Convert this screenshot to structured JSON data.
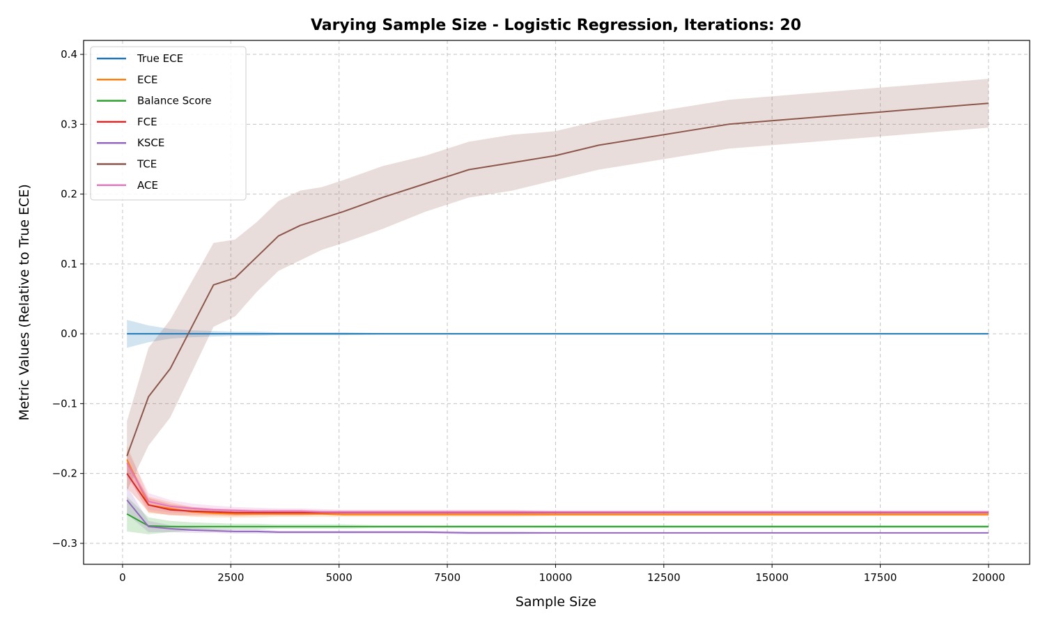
{
  "chart_data": {
    "type": "line",
    "title": "Varying Sample Size - Logistic Regression, Iterations: 20",
    "xlabel": "Sample Size",
    "ylabel": "Metric Values (Relative to True ECE)",
    "xlim": [
      -900,
      20950
    ],
    "ylim": [
      -0.33,
      0.42
    ],
    "xticks": [
      0,
      2500,
      5000,
      7500,
      10000,
      12500,
      15000,
      17500,
      20000
    ],
    "yticks": [
      -0.3,
      -0.2,
      -0.1,
      0.0,
      0.1,
      0.2,
      0.3,
      0.4
    ],
    "xtick_labels": [
      "0",
      "2500",
      "5000",
      "7500",
      "10000",
      "12500",
      "15000",
      "17500",
      "20000"
    ],
    "ytick_labels": [
      "−0.3",
      "−0.2",
      "−0.1",
      "0.0",
      "0.1",
      "0.2",
      "0.3",
      "0.4"
    ],
    "grid": true,
    "legend_position": "top-left",
    "x": [
      100,
      600,
      1100,
      1600,
      2100,
      2600,
      3100,
      3600,
      4100,
      4600,
      5100,
      6000,
      7000,
      8000,
      9000,
      10000,
      11000,
      12000,
      13000,
      14000,
      15000,
      16000,
      17000,
      18000,
      19000,
      20000
    ],
    "series": [
      {
        "name": "True ECE",
        "color": "#1f77b4",
        "values": [
          0.0,
          0.0,
          0.0,
          0.0,
          0.0,
          0.0,
          0.0,
          0.0,
          0.0,
          0.0,
          0.0,
          0.0,
          0.0,
          0.0,
          0.0,
          0.0,
          0.0,
          0.0,
          0.0,
          0.0,
          0.0,
          0.0,
          0.0,
          0.0,
          0.0,
          0.0
        ],
        "band": [
          0.02,
          0.012,
          0.007,
          0.005,
          0.004,
          0.003,
          0.003,
          0.002,
          0.002,
          0.002,
          0.002,
          0.001,
          0.001,
          0.001,
          0.001,
          0.001,
          0.001,
          0.001,
          0.001,
          0.001,
          0.001,
          0.001,
          0.001,
          0.001,
          0.001,
          0.001
        ]
      },
      {
        "name": "ECE",
        "color": "#ff7f0e",
        "values": [
          -0.18,
          -0.245,
          -0.25,
          -0.255,
          -0.257,
          -0.258,
          -0.258,
          -0.258,
          -0.258,
          -0.258,
          -0.259,
          -0.259,
          -0.259,
          -0.259,
          -0.259,
          -0.259,
          -0.259,
          -0.259,
          -0.259,
          -0.259,
          -0.259,
          -0.259,
          -0.259,
          -0.259,
          -0.259,
          -0.259
        ],
        "band": [
          0.02,
          0.012,
          0.009,
          0.007,
          0.006,
          0.005,
          0.005,
          0.004,
          0.004,
          0.004,
          0.003,
          0.003,
          0.003,
          0.003,
          0.003,
          0.002,
          0.002,
          0.002,
          0.002,
          0.002,
          0.002,
          0.002,
          0.002,
          0.002,
          0.002,
          0.002
        ]
      },
      {
        "name": "Balance Score",
        "color": "#2ca02c",
        "values": [
          -0.258,
          -0.275,
          -0.276,
          -0.276,
          -0.276,
          -0.276,
          -0.276,
          -0.276,
          -0.276,
          -0.276,
          -0.276,
          -0.276,
          -0.276,
          -0.276,
          -0.276,
          -0.276,
          -0.276,
          -0.276,
          -0.276,
          -0.276,
          -0.276,
          -0.276,
          -0.276,
          -0.276,
          -0.276,
          -0.276
        ],
        "band": [
          0.025,
          0.012,
          0.008,
          0.006,
          0.005,
          0.004,
          0.004,
          0.003,
          0.003,
          0.003,
          0.003,
          0.002,
          0.002,
          0.002,
          0.002,
          0.002,
          0.002,
          0.002,
          0.002,
          0.002,
          0.002,
          0.002,
          0.002,
          0.002,
          0.002,
          0.002
        ]
      },
      {
        "name": "FCE",
        "color": "#d62728",
        "values": [
          -0.2,
          -0.245,
          -0.252,
          -0.254,
          -0.255,
          -0.256,
          -0.256,
          -0.256,
          -0.256,
          -0.256,
          -0.256,
          -0.256,
          -0.256,
          -0.256,
          -0.256,
          -0.256,
          -0.256,
          -0.256,
          -0.256,
          -0.256,
          -0.256,
          -0.256,
          -0.256,
          -0.256,
          -0.256,
          -0.256
        ],
        "band": [
          0.02,
          0.01,
          0.008,
          0.006,
          0.005,
          0.005,
          0.004,
          0.004,
          0.004,
          0.003,
          0.003,
          0.003,
          0.003,
          0.003,
          0.003,
          0.002,
          0.002,
          0.002,
          0.002,
          0.002,
          0.002,
          0.002,
          0.002,
          0.002,
          0.002,
          0.002
        ]
      },
      {
        "name": "KSCE",
        "color": "#9467bd",
        "values": [
          -0.238,
          -0.276,
          -0.279,
          -0.281,
          -0.282,
          -0.283,
          -0.283,
          -0.284,
          -0.284,
          -0.284,
          -0.284,
          -0.284,
          -0.284,
          -0.285,
          -0.285,
          -0.285,
          -0.285,
          -0.285,
          -0.285,
          -0.285,
          -0.285,
          -0.285,
          -0.285,
          -0.285,
          -0.285,
          -0.285
        ],
        "band": [
          0.02,
          0.008,
          0.005,
          0.004,
          0.003,
          0.003,
          0.003,
          0.002,
          0.002,
          0.002,
          0.002,
          0.002,
          0.002,
          0.002,
          0.002,
          0.001,
          0.001,
          0.001,
          0.001,
          0.001,
          0.001,
          0.001,
          0.001,
          0.001,
          0.001,
          0.001
        ]
      },
      {
        "name": "TCE",
        "color": "#8c564b",
        "values": [
          -0.175,
          -0.09,
          -0.05,
          0.01,
          0.07,
          0.08,
          0.11,
          0.14,
          0.155,
          0.165,
          0.175,
          0.195,
          0.215,
          0.235,
          0.245,
          0.255,
          0.27,
          0.28,
          0.29,
          0.3,
          0.305,
          0.31,
          0.315,
          0.32,
          0.325,
          0.33
        ],
        "band": [
          0.05,
          0.07,
          0.07,
          0.065,
          0.06,
          0.055,
          0.05,
          0.05,
          0.05,
          0.045,
          0.045,
          0.045,
          0.04,
          0.04,
          0.04,
          0.035,
          0.035,
          0.035,
          0.035,
          0.035,
          0.035,
          0.035,
          0.035,
          0.035,
          0.035,
          0.035
        ]
      },
      {
        "name": "ACE",
        "color": "#e377c2",
        "values": [
          -0.185,
          -0.24,
          -0.247,
          -0.25,
          -0.252,
          -0.253,
          -0.254,
          -0.254,
          -0.254,
          -0.255,
          -0.255,
          -0.255,
          -0.255,
          -0.255,
          -0.255,
          -0.255,
          -0.255,
          -0.255,
          -0.255,
          -0.255,
          -0.255,
          -0.255,
          -0.255,
          -0.255,
          -0.255,
          -0.255
        ],
        "band": [
          0.02,
          0.012,
          0.009,
          0.007,
          0.006,
          0.005,
          0.005,
          0.004,
          0.004,
          0.004,
          0.003,
          0.003,
          0.003,
          0.003,
          0.003,
          0.002,
          0.002,
          0.002,
          0.002,
          0.002,
          0.002,
          0.002,
          0.002,
          0.002,
          0.002,
          0.002
        ]
      }
    ]
  }
}
